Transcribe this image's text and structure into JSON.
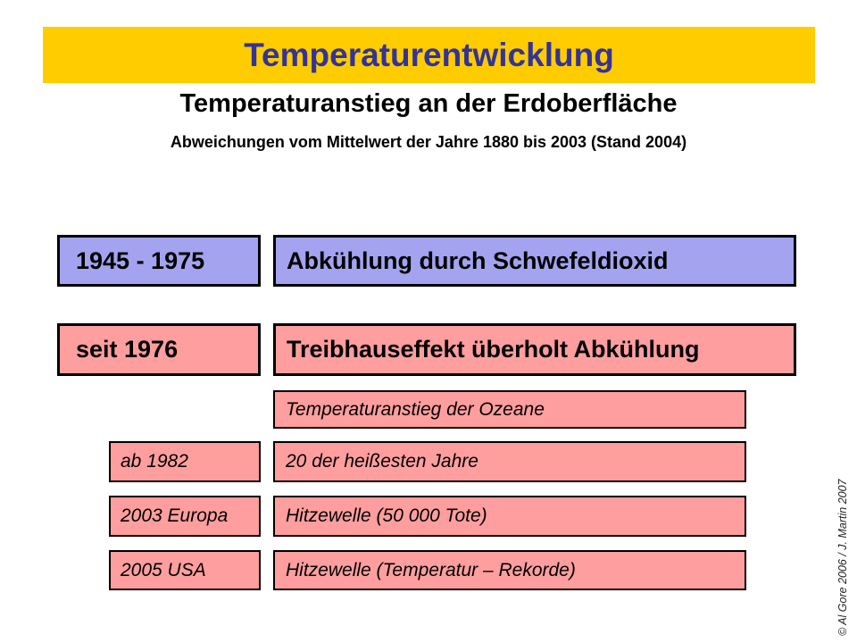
{
  "banner": {
    "title": "Temperaturentwicklung",
    "bg_color": "#FFCC00",
    "text_color": "#333399"
  },
  "heading": "Temperaturanstieg an der Erdoberfläche",
  "subtitle": "Abweichungen vom Mittelwert der Jahre 1880 bis 2003 (Stand 2004)",
  "rows": [
    {
      "label": "1945 - 1975",
      "text": "Abkühlung durch Schwefeldioxid",
      "color": "#A3A3F0",
      "emphasis": "bold"
    },
    {
      "label": "seit 1976",
      "text": "Treibhauseffekt überholt Abkühlung",
      "color": "#FF9E9E",
      "emphasis": "bold"
    },
    {
      "label": "",
      "text": "Temperaturanstieg der Ozeane",
      "color": "#FF9E9E",
      "emphasis": "italic"
    },
    {
      "label": "ab 1982",
      "text": "20 der heißesten Jahre",
      "color": "#FF9E9E",
      "emphasis": "italic"
    },
    {
      "label": "2003 Europa",
      "text": "Hitzewelle (50 000 Tote)",
      "color": "#FF9E9E",
      "emphasis": "italic"
    },
    {
      "label": "2005 USA",
      "text": "Hitzewelle (Temperatur – Rekorde)",
      "color": "#FF9E9E",
      "emphasis": "italic"
    }
  ],
  "credit": "© Al Gore 2006 / J. Martin 2007"
}
